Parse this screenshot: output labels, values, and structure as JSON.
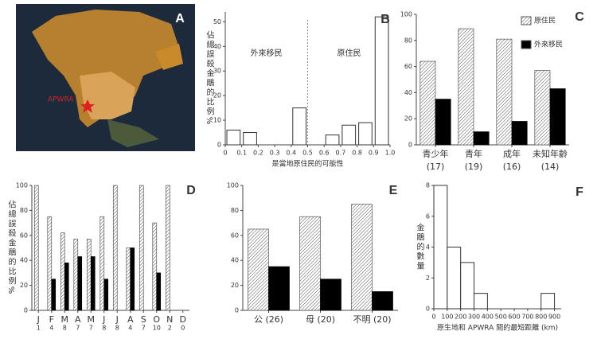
{
  "chart_data": [
    {
      "type": "map",
      "panel": "A",
      "annotations": [
        "APWRA"
      ]
    },
    {
      "type": "histogram",
      "panel": "B",
      "ylabel": "佔總誤殺金鵰的比例%",
      "xlabel": "是當地原住民的可能性",
      "bins": [
        0,
        0.1,
        0.2,
        0.3,
        0.4,
        0.5,
        0.6,
        0.7,
        0.8,
        0.9,
        1
      ],
      "values": [
        6,
        5,
        0,
        0,
        15,
        0,
        4,
        8,
        9,
        52
      ],
      "color": "#ffffff",
      "xlim": [
        0,
        1
      ],
      "ylim": [
        0,
        54
      ],
      "xticks": [
        0,
        0.1,
        0.2,
        0.3,
        0.4,
        0.5,
        0.6,
        0.7,
        0.8,
        0.9,
        {
          "value": 1,
          "label": "1.0"
        }
      ],
      "yticks": [
        0,
        10,
        20,
        30,
        40,
        50
      ],
      "divider": 0.5,
      "annotations": [
        "外來移民",
        "原住民"
      ]
    },
    {
      "type": "bar",
      "panel": "C",
      "categories": [
        "青少年",
        "青年",
        "成年",
        "未知年齡"
      ],
      "category_notes": [
        "(17)",
        "(19)",
        "(16)",
        "(14)"
      ],
      "series": [
        {
          "name": "原住民",
          "color": "#777777",
          "hatch": true,
          "values": [
            64,
            89,
            81,
            57
          ]
        },
        {
          "name": "外來移民",
          "color": "#000000",
          "values": [
            35,
            10,
            18,
            43
          ]
        }
      ],
      "ylim": [
        0,
        100
      ],
      "yticks": [
        0,
        20,
        40,
        60,
        80,
        100
      ],
      "legend": "top-right"
    },
    {
      "type": "bar",
      "panel": "D",
      "ylabel": "佔總誤殺金鵰的比例%",
      "categories": [
        "J",
        "F",
        "M",
        "A",
        "M",
        "J",
        "J",
        "A",
        "S",
        "O",
        "N",
        "D"
      ],
      "category_notes": [
        1,
        4,
        8,
        7,
        7,
        8,
        8,
        4,
        7,
        10,
        2,
        0
      ],
      "series": [
        {
          "color": "#777777",
          "hatch": true,
          "values": [
            100,
            75,
            62,
            57,
            57,
            75,
            100,
            50,
            100,
            70,
            100,
            0
          ]
        },
        {
          "color": "#000000",
          "values": [
            0,
            25,
            38,
            43,
            43,
            25,
            0,
            50,
            0,
            30,
            0,
            0
          ]
        }
      ],
      "ylim": [
        0,
        100
      ],
      "yticks": [
        0,
        20,
        40,
        60,
        80,
        100
      ]
    },
    {
      "type": "bar",
      "panel": "E",
      "categories": [
        "公 (26)",
        "母 (20)",
        "不明 (20)"
      ],
      "series": [
        {
          "color": "#777777",
          "hatch": true,
          "values": [
            65,
            75,
            85
          ]
        },
        {
          "color": "#000000",
          "values": [
            35,
            25,
            15
          ]
        }
      ],
      "ylim": [
        0,
        100
      ],
      "yticks": [
        0,
        20,
        40,
        60,
        80,
        100
      ]
    },
    {
      "type": "histogram",
      "panel": "F",
      "ylabel": "金鵰的數量",
      "xlabel": "原生地和 APWRA 間的最短距離 (km)",
      "bins": [
        0,
        100,
        200,
        300,
        400,
        500,
        600,
        700,
        800,
        900
      ],
      "values": [
        8,
        4,
        3,
        1,
        0,
        0,
        0,
        0,
        1
      ],
      "color": "#ffffff",
      "xlim": [
        0,
        950
      ],
      "ylim": [
        0,
        8
      ],
      "xticks": [
        0,
        100,
        200,
        300,
        400,
        500,
        600,
        700,
        800,
        900
      ],
      "yticks": [
        0,
        2,
        4,
        6,
        8
      ]
    }
  ]
}
